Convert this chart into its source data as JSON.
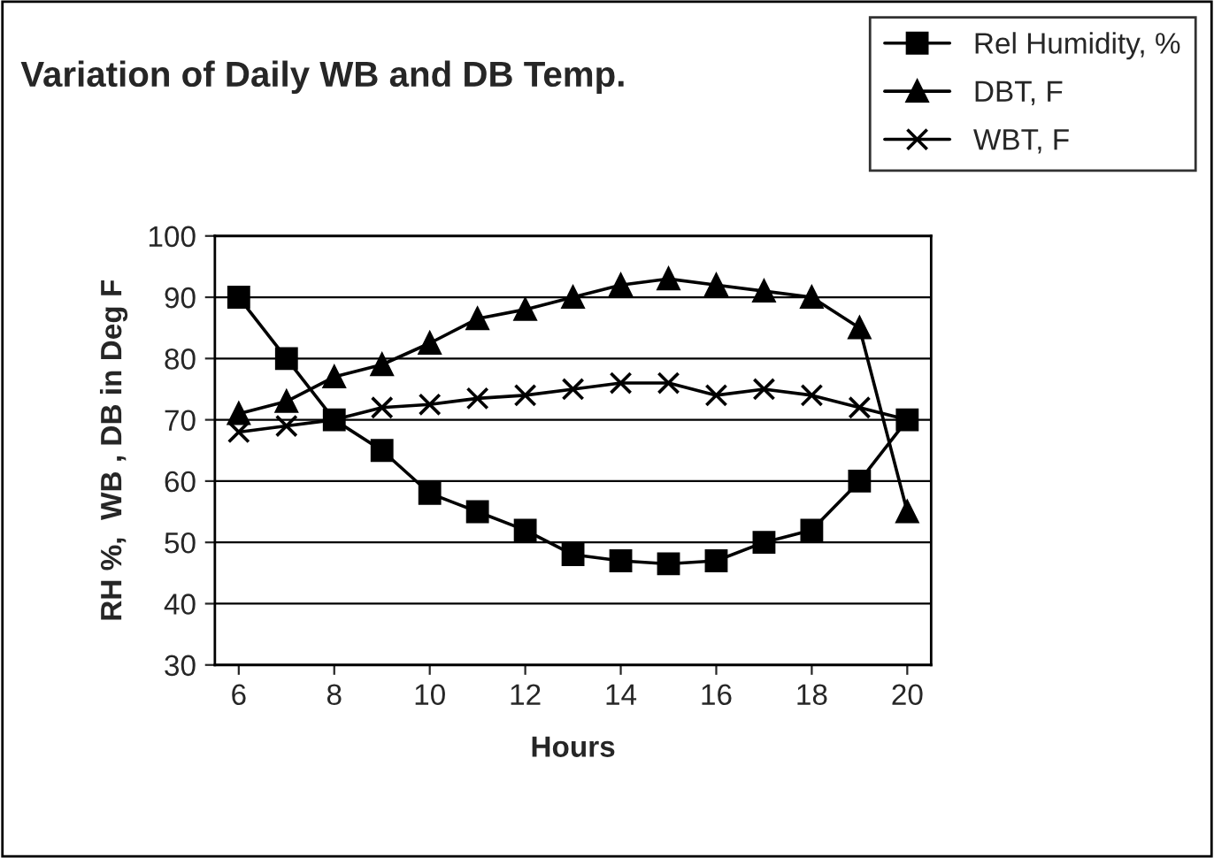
{
  "chart_data": {
    "type": "line",
    "title": "Variation of Daily WB and DB Temp.",
    "xlabel": "Hours",
    "ylabel": "RH %,  WB , DB in Deg F",
    "x": [
      6,
      7,
      8,
      9,
      10,
      11,
      12,
      13,
      14,
      15,
      16,
      17,
      18,
      19,
      20
    ],
    "series": [
      {
        "name": "Rel Humidity, %",
        "color": "#000000",
        "marker": "square",
        "values": [
          90,
          80,
          70,
          65,
          58,
          55,
          52,
          48,
          47,
          46.5,
          47,
          50,
          52,
          60,
          70
        ]
      },
      {
        "name": "DBT, F",
        "color": "#000000",
        "marker": "triangle",
        "values": [
          71,
          73,
          77,
          79,
          82.5,
          86.5,
          88,
          90,
          92,
          93,
          92,
          91,
          90,
          85,
          55
        ]
      },
      {
        "name": "WBT, F",
        "color": "#000000",
        "marker": "cross",
        "values": [
          68,
          69,
          70,
          72,
          72.5,
          73.5,
          74,
          75,
          76,
          76,
          74,
          75,
          74,
          72,
          70
        ]
      }
    ],
    "xlim": [
      5.5,
      20.5
    ],
    "xticks": [
      6,
      8,
      10,
      12,
      14,
      16,
      18,
      20
    ],
    "ylim": [
      30,
      100
    ],
    "yticks": [
      30,
      40,
      50,
      60,
      70,
      80,
      90,
      100
    ],
    "grid": "y",
    "legend": "top right",
    "line_style": "solid"
  }
}
